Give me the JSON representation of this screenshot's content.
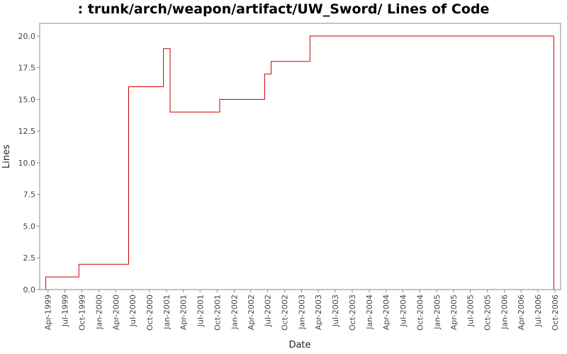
{
  "chart_data": {
    "type": "line",
    "title": ": trunk/arch/weapon/artifact/UW_Sword/ Lines of Code",
    "xlabel": "Date",
    "ylabel": "Lines",
    "step": true,
    "ylim": [
      0,
      21
    ],
    "yticks": [
      "0.0",
      "2.5",
      "5.0",
      "7.5",
      "10.0",
      "12.5",
      "15.0",
      "17.5",
      "20.0"
    ],
    "xlim": [
      "1999-02-15",
      "2006-11-01"
    ],
    "xticks": [
      {
        "date": "1999-04-01",
        "label": "Apr-1999"
      },
      {
        "date": "1999-07-01",
        "label": "Jul-1999"
      },
      {
        "date": "1999-10-01",
        "label": "Oct-1999"
      },
      {
        "date": "2000-01-01",
        "label": "Jan-2000"
      },
      {
        "date": "2000-04-01",
        "label": "Apr-2000"
      },
      {
        "date": "2000-07-01",
        "label": "Jul-2000"
      },
      {
        "date": "2000-10-01",
        "label": "Oct-2000"
      },
      {
        "date": "2001-01-01",
        "label": "Jan-2001"
      },
      {
        "date": "2001-04-01",
        "label": "Apr-2001"
      },
      {
        "date": "2001-07-01",
        "label": "Jul-2001"
      },
      {
        "date": "2001-10-01",
        "label": "Oct-2001"
      },
      {
        "date": "2002-01-01",
        "label": "Jan-2002"
      },
      {
        "date": "2002-04-01",
        "label": "Apr-2002"
      },
      {
        "date": "2002-07-01",
        "label": "Jul-2002"
      },
      {
        "date": "2002-10-01",
        "label": "Oct-2002"
      },
      {
        "date": "2003-01-01",
        "label": "Jan-2003"
      },
      {
        "date": "2003-04-01",
        "label": "Apr-2003"
      },
      {
        "date": "2003-07-01",
        "label": "Jul-2003"
      },
      {
        "date": "2003-10-01",
        "label": "Oct-2003"
      },
      {
        "date": "2004-01-01",
        "label": "Jan-2004"
      },
      {
        "date": "2004-04-01",
        "label": "Apr-2004"
      },
      {
        "date": "2004-07-01",
        "label": "Jul-2004"
      },
      {
        "date": "2004-10-01",
        "label": "Oct-2004"
      },
      {
        "date": "2005-01-01",
        "label": "Jan-2005"
      },
      {
        "date": "2005-04-01",
        "label": "Apr-2005"
      },
      {
        "date": "2005-07-01",
        "label": "Jul-2005"
      },
      {
        "date": "2005-10-01",
        "label": "Oct-2005"
      },
      {
        "date": "2006-01-01",
        "label": "Jan-2006"
      },
      {
        "date": "2006-04-01",
        "label": "Apr-2006"
      },
      {
        "date": "2006-07-01",
        "label": "Jul-2006"
      },
      {
        "date": "2006-10-01",
        "label": "Oct-2006"
      }
    ],
    "series": [
      {
        "color": "#cc0000",
        "points": [
          {
            "x": "1999-03-20",
            "y": 0
          },
          {
            "x": "1999-03-20",
            "y": 1
          },
          {
            "x": "1999-09-15",
            "y": 1
          },
          {
            "x": "1999-09-15",
            "y": 2
          },
          {
            "x": "2000-06-10",
            "y": 2
          },
          {
            "x": "2000-06-10",
            "y": 16
          },
          {
            "x": "2000-12-15",
            "y": 16
          },
          {
            "x": "2000-12-15",
            "y": 19
          },
          {
            "x": "2001-01-20",
            "y": 19
          },
          {
            "x": "2001-01-20",
            "y": 14
          },
          {
            "x": "2001-10-15",
            "y": 14
          },
          {
            "x": "2001-10-15",
            "y": 15
          },
          {
            "x": "2002-06-15",
            "y": 15
          },
          {
            "x": "2002-06-15",
            "y": 17
          },
          {
            "x": "2002-07-20",
            "y": 17
          },
          {
            "x": "2002-07-20",
            "y": 18
          },
          {
            "x": "2003-02-15",
            "y": 18
          },
          {
            "x": "2003-02-15",
            "y": 20
          },
          {
            "x": "2006-09-25",
            "y": 20
          },
          {
            "x": "2006-09-25",
            "y": 0
          }
        ]
      }
    ]
  }
}
